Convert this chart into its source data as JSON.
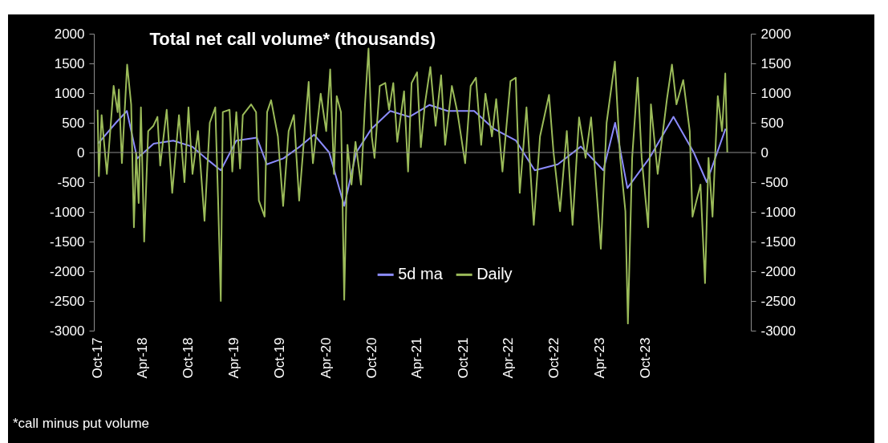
{
  "chart_data": {
    "type": "line",
    "title": "Total net call volume* (thousands)",
    "annotations": [
      "*call minus put volume"
    ],
    "xlim": [
      "2017-09-18",
      "2024-11-24"
    ],
    "xticks": [
      {
        "value": "2017-10-01",
        "label": "Oct-17"
      },
      {
        "value": "2018-04-01",
        "label": "Apr-18"
      },
      {
        "value": "2018-10-01",
        "label": "Oct-18"
      },
      {
        "value": "2019-04-01",
        "label": "Apr-19"
      },
      {
        "value": "2019-10-01",
        "label": "Oct-19"
      },
      {
        "value": "2020-04-01",
        "label": "Apr-20"
      },
      {
        "value": "2020-10-01",
        "label": "Oct-20"
      },
      {
        "value": "2021-04-01",
        "label": "Apr-21"
      },
      {
        "value": "2021-10-01",
        "label": "Oct-21"
      },
      {
        "value": "2022-04-01",
        "label": "Apr-22"
      },
      {
        "value": "2022-10-01",
        "label": "Oct-22"
      },
      {
        "value": "2023-04-01",
        "label": "Apr-23"
      },
      {
        "value": "2023-10-01",
        "label": "Oct-23"
      }
    ],
    "ylim": [
      -3000,
      2000
    ],
    "yticks": [
      -3000,
      -2500,
      -2000,
      -1500,
      -1000,
      -500,
      0,
      500,
      1000,
      1500,
      2000
    ],
    "y2lim": [
      -3000,
      2000
    ],
    "y2ticks": [
      -3000,
      -2500,
      -2000,
      -1500,
      -1000,
      -500,
      0,
      500,
      1000,
      1500,
      2000
    ],
    "grid": false,
    "legend": "bottom",
    "ref_lines": [
      {
        "axis": "y",
        "value": 0,
        "color": "#8c8c8c"
      }
    ],
    "series": [
      {
        "name": "5d ma",
        "color": "#8c8cff",
        "x": [
          "2017-10-05",
          "2017-12-15",
          "2018-01-28",
          "2018-03-10",
          "2018-05-15",
          "2018-08-01",
          "2018-10-15",
          "2018-12-10",
          "2019-02-07",
          "2019-04-10",
          "2019-07-01",
          "2019-08-10",
          "2019-10-15",
          "2019-12-20",
          "2020-02-15",
          "2020-04-15",
          "2020-06-14",
          "2020-08-01",
          "2020-10-01",
          "2020-12-15",
          "2021-03-01",
          "2021-05-20",
          "2021-08-01",
          "2021-11-15",
          "2022-02-01",
          "2022-05-01",
          "2022-07-15",
          "2022-10-15",
          "2023-01-15",
          "2023-04-15",
          "2023-06-01",
          "2023-07-20",
          "2023-10-15",
          "2024-01-20",
          "2024-04-10",
          "2024-06-01",
          "2024-08-15"
        ],
        "values": [
          150,
          500,
          700,
          -100,
          150,
          200,
          100,
          -100,
          -300,
          200,
          250,
          -200,
          -100,
          100,
          300,
          0,
          -900,
          0,
          400,
          700,
          600,
          800,
          700,
          700,
          400,
          200,
          -300,
          -200,
          100,
          -300,
          500,
          -600,
          -100,
          600,
          0,
          -500,
          400
        ]
      },
      {
        "name": "Daily",
        "color": "#9bbb59",
        "x": [
          "2017-10-03",
          "2017-10-08",
          "2017-10-19",
          "2017-11-09",
          "2017-11-20",
          "2017-12-06",
          "2017-12-22",
          "2017-12-27",
          "2018-01-08",
          "2018-01-29",
          "2018-02-14",
          "2018-02-25",
          "2018-03-06",
          "2018-03-16",
          "2018-03-25",
          "2018-04-07",
          "2018-04-23",
          "2018-05-14",
          "2018-05-30",
          "2018-06-10",
          "2018-07-06",
          "2018-07-28",
          "2018-08-24",
          "2018-09-15",
          "2018-10-01",
          "2018-10-17",
          "2018-11-08",
          "2018-12-04",
          "2018-12-25",
          "2019-01-16",
          "2019-01-27",
          "2019-02-07",
          "2019-02-15",
          "2019-03-14",
          "2019-03-25",
          "2019-04-10",
          "2019-04-25",
          "2019-05-06",
          "2019-06-08",
          "2019-06-28",
          "2019-07-09",
          "2019-08-01",
          "2019-08-11",
          "2019-08-27",
          "2019-09-23",
          "2019-10-14",
          "2019-11-05",
          "2019-11-26",
          "2019-12-17",
          "2020-01-08",
          "2020-01-24",
          "2020-01-30",
          "2020-02-10",
          "2020-03-12",
          "2020-04-03",
          "2020-04-19",
          "2020-05-04",
          "2020-05-15",
          "2020-06-01",
          "2020-06-14",
          "2020-06-27",
          "2020-07-13",
          "2020-07-29",
          "2020-08-20",
          "2020-09-05",
          "2020-09-19",
          "2020-10-02",
          "2020-10-13",
          "2020-11-03",
          "2020-11-25",
          "2020-12-10",
          "2020-12-27",
          "2021-01-12",
          "2021-02-08",
          "2021-02-24",
          "2021-03-10",
          "2021-04-01",
          "2021-04-16",
          "2021-05-02",
          "2021-05-24",
          "2021-06-14",
          "2021-07-06",
          "2021-07-22",
          "2021-08-18",
          "2021-09-09",
          "2021-10-10",
          "2021-11-01",
          "2021-11-22",
          "2021-12-13",
          "2021-12-30",
          "2022-01-25",
          "2022-02-11",
          "2022-03-08",
          "2022-04-09",
          "2022-04-30",
          "2022-05-16",
          "2022-06-12",
          "2022-07-11",
          "2022-08-05",
          "2022-09-10",
          "2022-09-28",
          "2022-10-24",
          "2022-11-20",
          "2022-12-13",
          "2023-01-08",
          "2023-02-03",
          "2023-02-25",
          "2023-04-05",
          "2023-04-28",
          "2023-05-31",
          "2023-06-21",
          "2023-07-12",
          "2023-07-22",
          "2023-08-08",
          "2023-08-30",
          "2023-09-15",
          "2023-10-11",
          "2023-10-22",
          "2023-11-18",
          "2023-12-25",
          "2024-01-14",
          "2024-02-01",
          "2024-02-28",
          "2024-03-25",
          "2024-04-05",
          "2024-05-07",
          "2024-05-25",
          "2024-06-08",
          "2024-06-24",
          "2024-07-15",
          "2024-08-01",
          "2024-08-14",
          "2024-08-22"
        ],
        "values": [
          720,
          -400,
          630,
          -360,
          220,
          1120,
          680,
          1060,
          -180,
          1480,
          810,
          -1260,
          0,
          -850,
          760,
          -1500,
          360,
          450,
          600,
          -220,
          720,
          -680,
          630,
          -500,
          760,
          -360,
          360,
          -1150,
          500,
          760,
          -760,
          -2500,
          680,
          720,
          -320,
          680,
          -270,
          630,
          810,
          680,
          -810,
          -1080,
          680,
          880,
          270,
          -900,
          360,
          630,
          -810,
          360,
          1190,
          500,
          -180,
          990,
          360,
          1400,
          -360,
          950,
          680,
          -2480,
          130,
          -540,
          180,
          -540,
          810,
          1750,
          270,
          -90,
          1120,
          1170,
          720,
          1170,
          180,
          1030,
          -320,
          1170,
          1350,
          90,
          810,
          1440,
          450,
          1300,
          130,
          1120,
          680,
          -180,
          1120,
          1260,
          130,
          990,
          270,
          900,
          -320,
          1200,
          1260,
          -680,
          760,
          -1220,
          270,
          970,
          0,
          -990,
          360,
          -1220,
          590,
          -90,
          590,
          -1620,
          500,
          1530,
          -90,
          -990,
          -2880,
          -90,
          1260,
          -90,
          -1260,
          810,
          -360,
          900,
          1480,
          810,
          1220,
          360,
          -1080,
          -540,
          -2200,
          -90,
          -1080,
          950,
          360,
          1330,
          0
        ]
      }
    ]
  }
}
